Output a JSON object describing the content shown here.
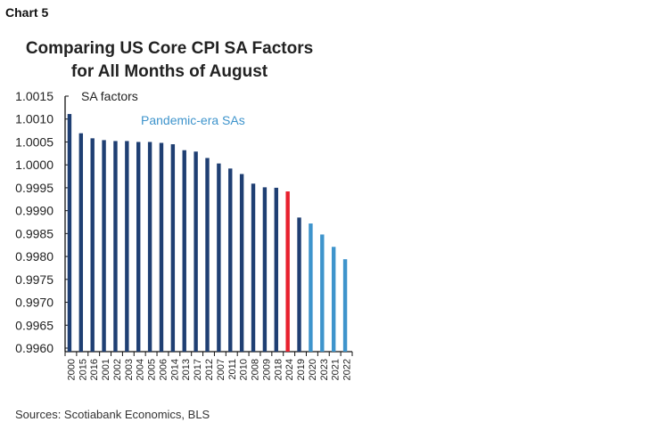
{
  "chart_label": "Chart 5",
  "source": "Sources: Scotiabank Economics, BLS",
  "colors": {
    "regular": "#1f3f73",
    "current": "#e8202e",
    "pandemic": "#3e94cc"
  },
  "chart_data": {
    "type": "bar",
    "title": "Comparing US Core CPI SA Factors for All Months of August",
    "title_lines": [
      "Comparing US Core CPI SA Factors",
      "for All Months of August"
    ],
    "ylabel": "SA factors",
    "xlabel": "",
    "ylim": [
      0.996,
      1.0015
    ],
    "yticks": [
      "0.9960",
      "0.9965",
      "0.9970",
      "0.9975",
      "0.9980",
      "0.9985",
      "0.9990",
      "0.9995",
      "1.0000",
      "1.0005",
      "1.0010",
      "1.0015"
    ],
    "grid": false,
    "annotations": [
      "Pandemic-era SAs"
    ],
    "categories": [
      "2000",
      "2015",
      "2016",
      "2001",
      "2002",
      "2003",
      "2004",
      "2005",
      "2006",
      "2014",
      "2013",
      "2017",
      "2012",
      "2007",
      "2011",
      "2010",
      "2008",
      "2009",
      "2018",
      "2024",
      "2019",
      "2020",
      "2023",
      "2021",
      "2022"
    ],
    "values": [
      1.00111,
      1.00069,
      1.00058,
      1.00054,
      1.00052,
      1.00052,
      1.0005,
      1.0005,
      1.00048,
      1.00045,
      1.00032,
      1.00029,
      1.00015,
      1.00003,
      0.99992,
      0.9998,
      0.99959,
      0.99951,
      0.9995,
      0.99942,
      0.99885,
      0.99872,
      0.99848,
      0.99821,
      0.99794
    ],
    "bar_groups": [
      "regular",
      "regular",
      "regular",
      "regular",
      "regular",
      "regular",
      "regular",
      "regular",
      "regular",
      "regular",
      "regular",
      "regular",
      "regular",
      "regular",
      "regular",
      "regular",
      "regular",
      "regular",
      "regular",
      "current",
      "regular",
      "pandemic",
      "pandemic",
      "pandemic",
      "pandemic"
    ]
  }
}
